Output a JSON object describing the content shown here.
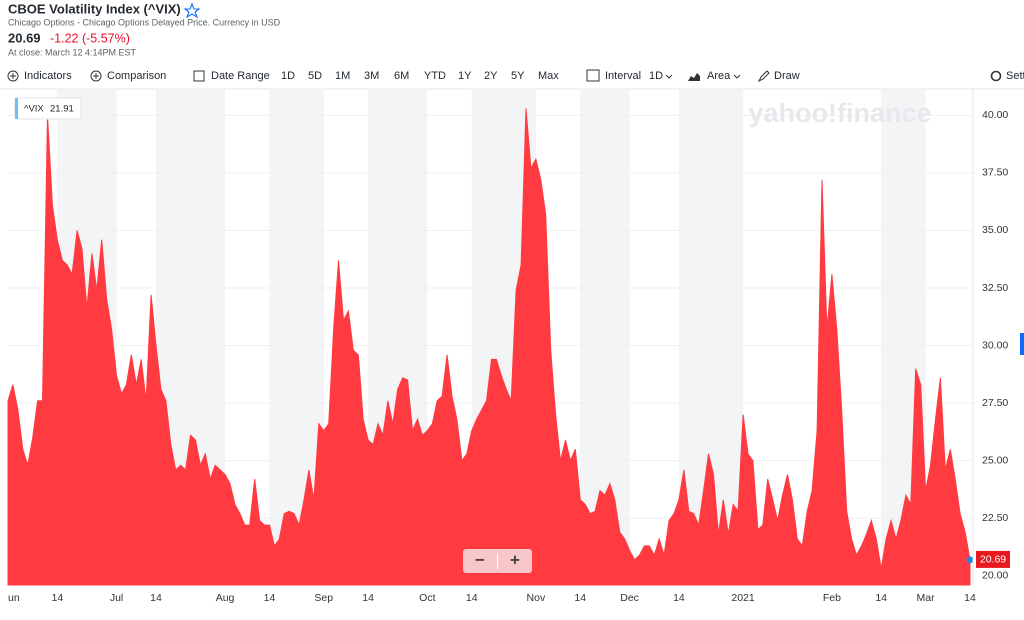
{
  "header": {
    "title": "CBOE Volatility Index (^VIX)",
    "subtitle": "Chicago Options - Chicago Options Delayed Price. Currency in USD",
    "price": "20.69",
    "change": "-1.22 (-5.57%)",
    "close_time": "At close: March 12 4:14PM EST"
  },
  "toolbar": {
    "indicators": "Indicators",
    "comparison": "Comparison",
    "date_range": "Date Range",
    "ranges": [
      "1D",
      "5D",
      "1M",
      "3M",
      "6M",
      "YTD",
      "1Y",
      "2Y",
      "5Y",
      "Max"
    ],
    "interval": "Interval",
    "interval_value": "1D",
    "chart_type": "Area",
    "draw": "Draw",
    "settings": "Sett"
  },
  "tooltip": {
    "symbol": "^VIX",
    "value": "21.91"
  },
  "watermark": "yahoo!finance",
  "zoom": {
    "out": "−",
    "in": "+"
  },
  "chart_data": {
    "type": "area",
    "color": "#ff3a41",
    "grid": true,
    "ylim": [
      19.6,
      41.1
    ],
    "yticks": [
      {
        "value": 20,
        "label": "20.00"
      },
      {
        "value": 22.5,
        "label": "22.50"
      },
      {
        "value": 25,
        "label": "25.00"
      },
      {
        "value": 27.5,
        "label": "27.50"
      },
      {
        "value": 30,
        "label": "30.00"
      },
      {
        "value": 32.5,
        "label": "32.50"
      },
      {
        "value": 35,
        "label": "35.00"
      },
      {
        "value": 37.5,
        "label": "37.50"
      },
      {
        "value": 40,
        "label": "40.00"
      }
    ],
    "categories": [
      "un",
      null,
      null,
      null,
      null,
      null,
      null,
      null,
      null,
      null,
      "14",
      null,
      null,
      null,
      null,
      null,
      null,
      null,
      null,
      null,
      null,
      null,
      "Jul",
      null,
      null,
      null,
      null,
      null,
      null,
      null,
      "14",
      null,
      null,
      null,
      null,
      null,
      null,
      null,
      null,
      null,
      null,
      null,
      null,
      null,
      "Aug",
      null,
      null,
      null,
      null,
      null,
      null,
      null,
      null,
      "14",
      null,
      null,
      null,
      null,
      null,
      null,
      null,
      null,
      null,
      null,
      "Sep",
      null,
      null,
      null,
      null,
      null,
      null,
      null,
      null,
      "14",
      null,
      null,
      null,
      null,
      null,
      null,
      null,
      null,
      null,
      null,
      null,
      "Oct",
      null,
      null,
      null,
      null,
      null,
      null,
      null,
      null,
      "14",
      null,
      null,
      null,
      null,
      null,
      null,
      null,
      null,
      null,
      null,
      null,
      null,
      "Nov",
      null,
      null,
      null,
      null,
      null,
      null,
      null,
      null,
      "14",
      null,
      null,
      null,
      null,
      null,
      null,
      null,
      null,
      null,
      "Dec",
      null,
      null,
      null,
      null,
      null,
      null,
      null,
      null,
      null,
      "14",
      null,
      null,
      null,
      null,
      null,
      null,
      null,
      null,
      null,
      null,
      null,
      null,
      "2021",
      null,
      null,
      null,
      null,
      null,
      null,
      null,
      null,
      null,
      null,
      null,
      null,
      null,
      null,
      null,
      null,
      null,
      "Feb",
      null,
      null,
      null,
      null,
      null,
      null,
      null,
      null,
      null,
      "14",
      null,
      null,
      null,
      null,
      null,
      null,
      null,
      null,
      "Mar",
      null,
      null,
      null,
      null,
      null,
      null,
      null,
      null,
      "14"
    ],
    "values": [
      27.6,
      28.3,
      27.2,
      25.5,
      24.8,
      26.0,
      27.6,
      27.6,
      40.0,
      36.1,
      34.6,
      33.7,
      33.5,
      33.1,
      35.0,
      34.2,
      31.6,
      34.0,
      32.4,
      34.6,
      32.0,
      30.7,
      28.7,
      27.9,
      28.3,
      29.6,
      28.3,
      29.4,
      27.6,
      32.2,
      30.0,
      28.1,
      27.6,
      25.7,
      24.6,
      24.8,
      24.6,
      26.1,
      25.9,
      24.8,
      25.3,
      24.2,
      24.8,
      24.6,
      24.4,
      24.0,
      23.1,
      22.7,
      22.2,
      22.2,
      24.2,
      22.4,
      22.2,
      22.2,
      21.3,
      21.6,
      22.7,
      22.8,
      22.7,
      22.2,
      23.3,
      24.6,
      23.3,
      26.6,
      26.3,
      26.6,
      30.7,
      33.7,
      31.1,
      31.5,
      29.8,
      29.6,
      26.8,
      25.9,
      25.7,
      26.6,
      26.1,
      27.6,
      26.6,
      28.1,
      28.6,
      28.5,
      26.3,
      26.8,
      26.1,
      26.3,
      26.6,
      27.6,
      27.8,
      29.6,
      27.8,
      26.8,
      25.0,
      25.3,
      26.3,
      26.8,
      27.2,
      27.6,
      29.4,
      29.4,
      28.7,
      28.1,
      27.6,
      32.4,
      33.5,
      40.3,
      37.7,
      38.1,
      37.2,
      35.7,
      29.8,
      27.0,
      25.0,
      25.9,
      25.0,
      25.5,
      23.3,
      23.1,
      22.7,
      22.8,
      23.7,
      23.5,
      24.0,
      23.3,
      21.9,
      21.6,
      21.1,
      20.7,
      20.9,
      21.3,
      21.3,
      20.9,
      21.6,
      20.9,
      22.4,
      22.7,
      23.3,
      24.6,
      22.8,
      22.7,
      22.2,
      23.7,
      25.3,
      24.4,
      21.8,
      23.3,
      21.8,
      23.1,
      22.8,
      27.0,
      25.3,
      25.0,
      22.0,
      22.2,
      24.2,
      23.3,
      22.4,
      23.5,
      24.4,
      23.3,
      21.6,
      21.3,
      22.8,
      23.7,
      26.3,
      37.2,
      30.7,
      33.1,
      30.7,
      27.2,
      22.8,
      21.6,
      20.9,
      21.3,
      21.8,
      22.4,
      21.6,
      20.3,
      21.6,
      22.4,
      21.6,
      22.4,
      23.5,
      23.1,
      29.0,
      28.3,
      23.7,
      24.8,
      26.8,
      28.6,
      24.6,
      25.5,
      24.2,
      22.7,
      21.9,
      20.69
    ]
  }
}
